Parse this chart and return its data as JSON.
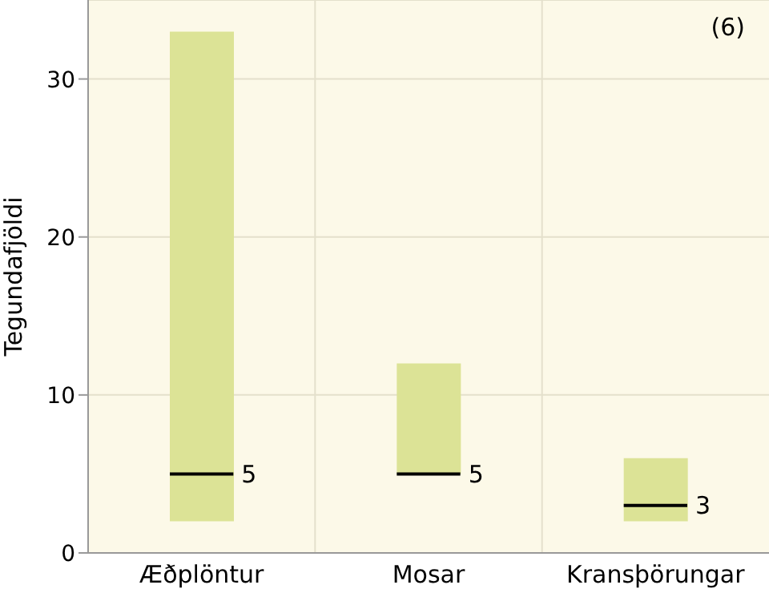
{
  "chart_data": {
    "type": "box",
    "ylabel": "Tegundafjöldi",
    "categories": [
      "Æðplöntur",
      "Mosar",
      "Kransþörungar"
    ],
    "boxes": [
      {
        "low": 2,
        "q1": 2,
        "median": 5,
        "q3": 33,
        "high": 33
      },
      {
        "low": 5,
        "q1": 5,
        "median": 5,
        "q3": 12,
        "high": 12
      },
      {
        "low": 2,
        "q1": 2,
        "median": 3,
        "q3": 6,
        "high": 6
      }
    ],
    "color": "#dce396",
    "ylim": [
      0,
      35
    ],
    "yticks": [
      0,
      10,
      20,
      30
    ],
    "grid": true,
    "annotations": [
      "(6)",
      {
        "text": "5",
        "x": "Æðplöntur",
        "y": 5
      },
      {
        "text": "5",
        "x": "Mosar",
        "y": 5
      },
      {
        "text": "3",
        "x": "Kransþörungar",
        "y": 3
      }
    ]
  }
}
